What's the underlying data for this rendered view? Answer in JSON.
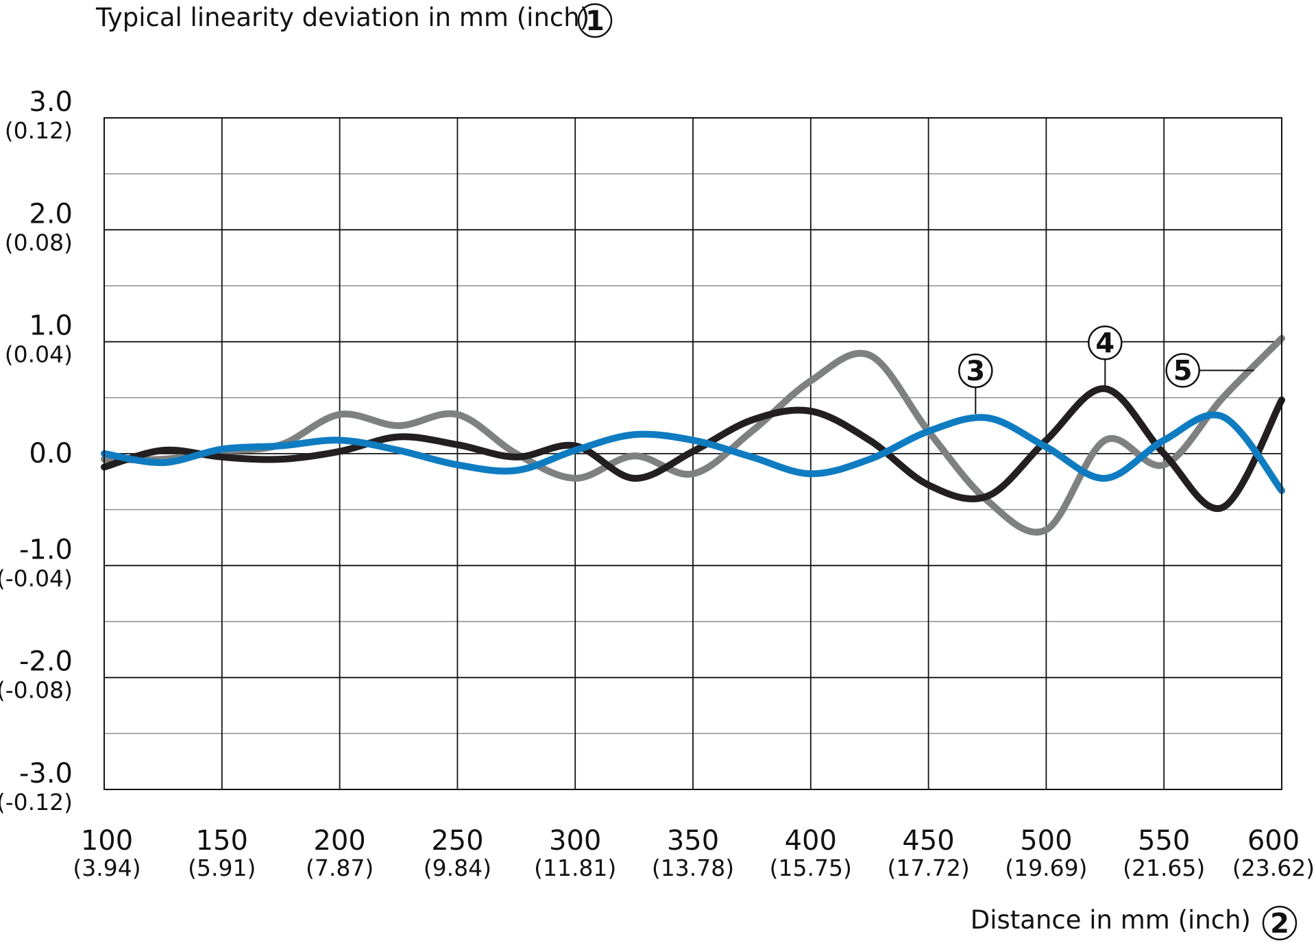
{
  "chart_data": {
    "type": "line",
    "ylabel": "Typical linearity deviation in mm (inch)",
    "ylabel_marker": "1",
    "xlabel": "Distance in mm (inch)",
    "xlabel_marker": "2",
    "xlim": [
      100,
      600
    ],
    "ylim": [
      -3.0,
      3.0
    ],
    "x_ticks": [
      {
        "value": 100,
        "label": "100",
        "sub": "(3.94)"
      },
      {
        "value": 150,
        "label": "150",
        "sub": "(5.91)"
      },
      {
        "value": 200,
        "label": "200",
        "sub": "(7.87)"
      },
      {
        "value": 250,
        "label": "250",
        "sub": "(9.84)"
      },
      {
        "value": 300,
        "label": "300",
        "sub": "(11.81)"
      },
      {
        "value": 350,
        "label": "350",
        "sub": "(13.78)"
      },
      {
        "value": 400,
        "label": "400",
        "sub": "(15.75)"
      },
      {
        "value": 450,
        "label": "450",
        "sub": "(17.72)"
      },
      {
        "value": 500,
        "label": "500",
        "sub": "(19.69)"
      },
      {
        "value": 550,
        "label": "550",
        "sub": "(21.65)"
      },
      {
        "value": 600,
        "label": "600",
        "sub": "(23.62)"
      }
    ],
    "y_ticks": [
      {
        "value": 3.0,
        "label": "3.0",
        "sub": "(0.12)"
      },
      {
        "value": 2.0,
        "label": "2.0",
        "sub": "(0.08)"
      },
      {
        "value": 1.0,
        "label": "1.0",
        "sub": "(0.04)"
      },
      {
        "value": 0.0,
        "label": "0.0",
        "sub": ""
      },
      {
        "value": -1.0,
        "label": "-1.0",
        "sub": "(-0.04)"
      },
      {
        "value": -2.0,
        "label": "-2.0",
        "sub": "(-0.08)"
      },
      {
        "value": -3.0,
        "label": "-3.0",
        "sub": "(-0.12)"
      }
    ],
    "grid": true,
    "minor_y_gridlines": [
      2.5,
      1.5,
      0.5,
      -0.5,
      -1.5,
      -2.5
    ],
    "series": [
      {
        "marker": "5",
        "color": "#7f8180",
        "x": [
          100,
          125,
          150,
          175,
          200,
          225,
          250,
          275,
          300,
          325,
          350,
          375,
          400,
          425,
          450,
          475,
          500,
          525,
          550,
          575,
          600
        ],
        "y": [
          -0.05,
          -0.05,
          0.02,
          0.08,
          0.35,
          0.25,
          0.35,
          0.0,
          -0.22,
          -0.02,
          -0.18,
          0.2,
          0.65,
          0.88,
          0.2,
          -0.42,
          -0.68,
          0.12,
          -0.1,
          0.5,
          1.03
        ],
        "callout_x": 590,
        "callout_y": 0.75
      },
      {
        "marker": "4",
        "color": "#231f20",
        "x": [
          100,
          125,
          150,
          175,
          200,
          225,
          250,
          275,
          300,
          325,
          350,
          375,
          400,
          425,
          450,
          475,
          500,
          525,
          550,
          575,
          600
        ],
        "y": [
          -0.12,
          0.03,
          -0.03,
          -0.05,
          0.02,
          0.15,
          0.08,
          -0.03,
          0.07,
          -0.22,
          0.02,
          0.3,
          0.38,
          0.12,
          -0.28,
          -0.38,
          0.12,
          0.58,
          0.0,
          -0.48,
          0.48
        ],
        "callout_x": 525,
        "callout_y": 0.58
      },
      {
        "marker": "3",
        "color": "#0f7cc1",
        "x": [
          100,
          125,
          150,
          175,
          200,
          225,
          250,
          275,
          300,
          325,
          350,
          375,
          400,
          425,
          450,
          475,
          500,
          525,
          550,
          575,
          600
        ],
        "y": [
          0.0,
          -0.08,
          0.04,
          0.07,
          0.12,
          0.03,
          -0.1,
          -0.15,
          0.03,
          0.17,
          0.12,
          -0.03,
          -0.18,
          -0.05,
          0.2,
          0.32,
          0.06,
          -0.22,
          0.12,
          0.33,
          -0.33
        ],
        "callout_x": 470,
        "callout_y": 0.33
      }
    ]
  }
}
